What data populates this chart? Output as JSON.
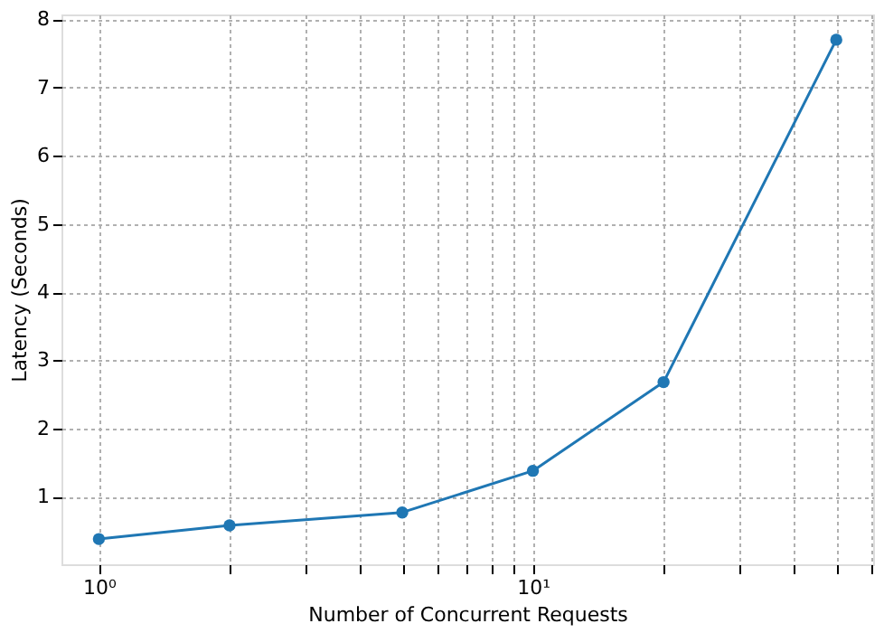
{
  "chart_data": {
    "type": "line",
    "xlabel": "Number of Concurrent Requests",
    "ylabel": "Latency (Seconds)",
    "x": [
      1,
      2,
      5,
      10,
      20,
      50
    ],
    "series": [
      {
        "color": "#1f77b4",
        "values": [
          0.38,
          0.58,
          0.77,
          1.38,
          2.68,
          7.7
        ]
      }
    ],
    "log": "x",
    "xlim": [
      0.82,
      60.8
    ],
    "ylim": [
      0.01,
      8.07
    ],
    "xticks": [
      {
        "value": 1,
        "label": "10⁰"
      },
      {
        "value": 2,
        "label": null
      },
      {
        "value": 3,
        "label": null
      },
      {
        "value": 4,
        "label": null
      },
      {
        "value": 5,
        "label": null
      },
      {
        "value": 6,
        "label": null
      },
      {
        "value": 7,
        "label": null
      },
      {
        "value": 8,
        "label": null
      },
      {
        "value": 9,
        "label": null
      },
      {
        "value": 10,
        "label": "10¹"
      },
      {
        "value": 20,
        "label": null
      },
      {
        "value": 30,
        "label": null
      },
      {
        "value": 40,
        "label": null
      },
      {
        "value": 50,
        "label": null
      },
      {
        "value": 60,
        "label": null
      }
    ],
    "yticks": [
      1,
      2,
      3,
      4,
      5,
      6,
      7,
      8
    ],
    "grid": true,
    "marker": "circle",
    "line_style": "solid"
  }
}
